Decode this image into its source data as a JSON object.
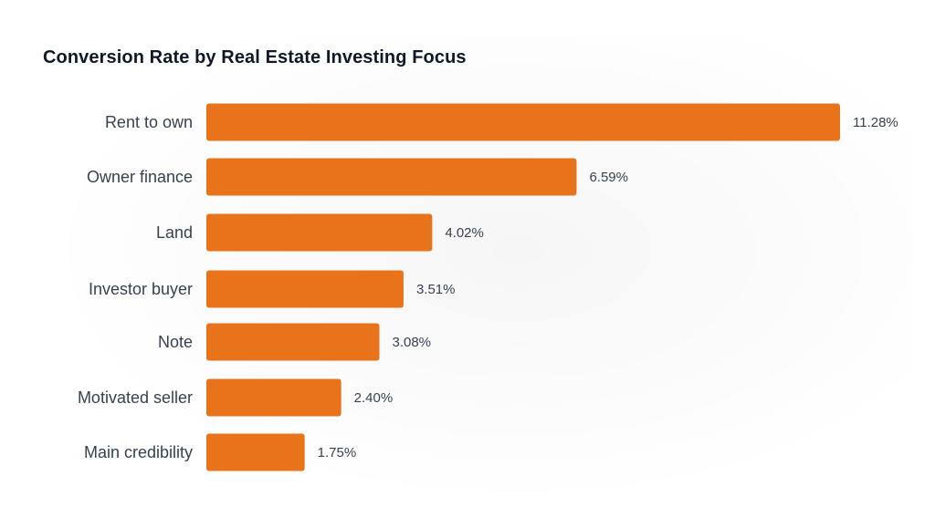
{
  "chart_data": {
    "type": "bar",
    "orientation": "horizontal",
    "title": "Conversion Rate by Real Estate Investing Focus",
    "categories": [
      "Rent to own",
      "Owner finance",
      "Land",
      "Investor buyer",
      "Note",
      "Motivated seller",
      "Main credibility"
    ],
    "values": [
      11.28,
      6.59,
      4.02,
      3.51,
      3.08,
      2.4,
      1.75
    ],
    "value_labels": [
      "11.28%",
      "6.59%",
      "4.02%",
      "3.51%",
      "3.08%",
      "2.40%",
      "1.75%"
    ],
    "xlabel": "",
    "ylabel": "",
    "bar_color": "#E8731A",
    "grid": false,
    "legend": "none"
  }
}
